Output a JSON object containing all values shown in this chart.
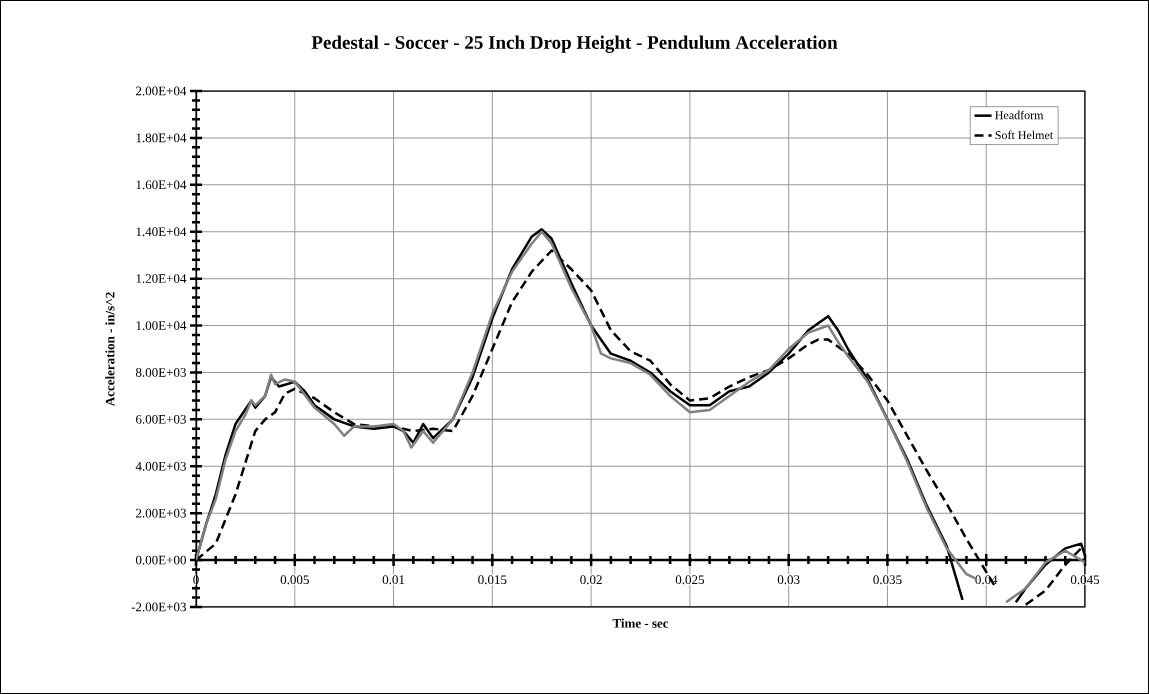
{
  "chart_data": {
    "type": "line",
    "title": "Pedestal - Soccer - 25 Inch Drop Height - Pendulum Acceleration",
    "xlabel": "Time - sec",
    "ylabel": "Acceleration - in/s^2",
    "xlim": [
      0,
      0.045
    ],
    "xticks": [
      0,
      0.005,
      0.01,
      0.015,
      0.02,
      0.025,
      0.03,
      0.035,
      0.04,
      0.045
    ],
    "ylim": [
      -2000,
      20000
    ],
    "yticks": [
      {
        "value": -2000,
        "label": "-2.00E+03"
      },
      {
        "value": 0,
        "label": "0.00E+00"
      },
      {
        "value": 2000,
        "label": "2.00E+03"
      },
      {
        "value": 4000,
        "label": "4.00E+03"
      },
      {
        "value": 6000,
        "label": "6.00E+03"
      },
      {
        "value": 8000,
        "label": "8.00E+03"
      },
      {
        "value": 10000,
        "label": "1.00E+04"
      },
      {
        "value": 12000,
        "label": "1.20E+04"
      },
      {
        "value": 14000,
        "label": "1.40E+04"
      },
      {
        "value": 16000,
        "label": "1.60E+04"
      },
      {
        "value": 18000,
        "label": "1.80E+04"
      },
      {
        "value": 20000,
        "label": "2.00E+04"
      }
    ],
    "grid": true,
    "legend": "top right",
    "marker": "none",
    "series": [
      {
        "name": "Headform",
        "color": "#000000",
        "line_style": "solid",
        "x": [
          0,
          0.0005,
          0.001,
          0.0015,
          0.002,
          0.0028,
          0.003,
          0.0035,
          0.0038,
          0.0042,
          0.005,
          0.0055,
          0.006,
          0.007,
          0.008,
          0.009,
          0.01,
          0.0105,
          0.011,
          0.0115,
          0.012,
          0.013,
          0.014,
          0.015,
          0.016,
          0.017,
          0.0175,
          0.018,
          0.019,
          0.02,
          0.021,
          0.022,
          0.023,
          0.024,
          0.025,
          0.026,
          0.027,
          0.028,
          0.029,
          0.03,
          0.031,
          0.032,
          0.0325,
          0.033,
          0.034,
          0.035,
          0.036,
          0.037,
          0.038,
          0.0388,
          0.04,
          0.0415,
          0.042,
          0.043,
          0.044,
          0.0448,
          0.045
        ],
        "values": [
          0,
          1500,
          2800,
          4500,
          5800,
          6800,
          6500,
          7000,
          7800,
          7400,
          7600,
          7200,
          6600,
          6000,
          5700,
          5600,
          5700,
          5500,
          5000,
          5800,
          5200,
          6000,
          7800,
          10300,
          12400,
          13800,
          14100,
          13700,
          11800,
          10000,
          8800,
          8500,
          8000,
          7200,
          6600,
          6600,
          7200,
          7400,
          8000,
          8800,
          9800,
          10400,
          9800,
          9000,
          7700,
          6000,
          4300,
          2300,
          600,
          -1700,
          null,
          -1800,
          -1200,
          -200,
          500,
          700,
          200
        ]
      },
      {
        "name": "Soft Helmet",
        "color": "#000000",
        "line_style": "dashed",
        "x": [
          0,
          0.001,
          0.002,
          0.003,
          0.0035,
          0.004,
          0.0045,
          0.005,
          0.006,
          0.007,
          0.008,
          0.009,
          0.01,
          0.011,
          0.012,
          0.013,
          0.014,
          0.015,
          0.016,
          0.017,
          0.018,
          0.019,
          0.02,
          0.021,
          0.022,
          0.023,
          0.024,
          0.025,
          0.026,
          0.027,
          0.028,
          0.029,
          0.03,
          0.031,
          0.0315,
          0.032,
          0.033,
          0.034,
          0.035,
          0.036,
          0.037,
          0.038,
          0.039,
          0.04,
          0.0405,
          0.041,
          0.042,
          0.043,
          0.044,
          0.0448,
          0.045
        ],
        "values": [
          0,
          700,
          2800,
          5500,
          6000,
          6300,
          7100,
          7300,
          6900,
          6300,
          5800,
          5700,
          5700,
          5500,
          5600,
          5500,
          7000,
          9000,
          11000,
          12300,
          13200,
          12400,
          11500,
          9800,
          8900,
          8500,
          7500,
          6800,
          6900,
          7400,
          7800,
          8100,
          8600,
          9200,
          9400,
          9400,
          8800,
          7900,
          6800,
          5300,
          3800,
          2400,
          900,
          -500,
          -1200,
          null,
          -1900,
          -1300,
          -200,
          500,
          400
        ]
      },
      {
        "color": "#808080",
        "line_style": "solid",
        "x": [
          0,
          0.0005,
          0.001,
          0.0015,
          0.002,
          0.0025,
          0.0028,
          0.003,
          0.0035,
          0.0038,
          0.004,
          0.0045,
          0.005,
          0.006,
          0.007,
          0.0075,
          0.008,
          0.009,
          0.01,
          0.0105,
          0.0109,
          0.0115,
          0.012,
          0.013,
          0.014,
          0.015,
          0.016,
          0.017,
          0.0175,
          0.018,
          0.019,
          0.02,
          0.0205,
          0.021,
          0.022,
          0.023,
          0.024,
          0.025,
          0.026,
          0.027,
          0.028,
          0.029,
          0.03,
          0.031,
          0.032,
          0.0325,
          0.033,
          0.034,
          0.035,
          0.036,
          0.037,
          0.038,
          0.039,
          0.0395,
          0.04,
          0.041,
          0.042,
          0.043,
          0.044,
          0.045
        ],
        "values": [
          0,
          1500,
          2600,
          4300,
          5500,
          6200,
          6800,
          6600,
          7000,
          7900,
          7500,
          7700,
          7600,
          6500,
          5800,
          5300,
          5700,
          5700,
          5800,
          5500,
          4800,
          5500,
          5000,
          6000,
          8000,
          10500,
          12300,
          13500,
          14000,
          13500,
          11600,
          10000,
          8800,
          8600,
          8400,
          7900,
          7000,
          6300,
          6400,
          7000,
          7600,
          8100,
          9000,
          9700,
          10000,
          9300,
          8700,
          7600,
          6000,
          4200,
          2200,
          500,
          -600,
          -800,
          null,
          -1800,
          -1200,
          -100,
          400,
          -100
        ]
      }
    ]
  }
}
